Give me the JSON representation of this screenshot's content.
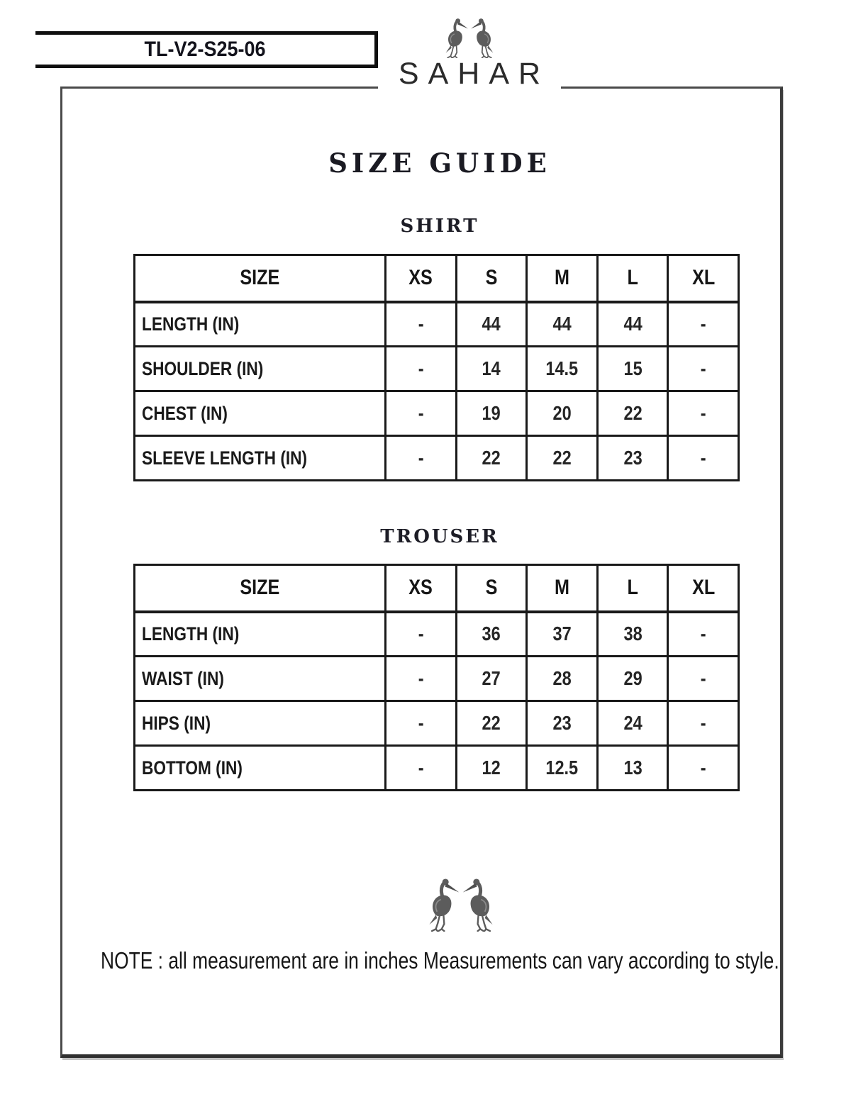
{
  "page": {
    "style_code": "TL-V2-S25-06",
    "brand": "SAHAR",
    "title": "SIZE GUIDE",
    "note": "NOTE : all measurement are in inches Measurements can vary according to style.",
    "icons": {
      "header_logo": "twin-stork-logo-icon",
      "footer_decoration": "twin-stork-decoration-icon"
    },
    "colors": {
      "text": "#1b1b1b",
      "table_border": "#191919",
      "frame_border": "#4a4a4a",
      "bird_gray": "#5c5c5c",
      "background": "#ffffff"
    }
  },
  "tables": [
    {
      "name": "SHIRT",
      "columns": [
        "SIZE",
        "XS",
        "S",
        "M",
        "L",
        "XL"
      ],
      "rows": [
        {
          "label": "LENGTH (IN)",
          "values": [
            "-",
            "44",
            "44",
            "44",
            "-"
          ]
        },
        {
          "label": "SHOULDER (IN)",
          "values": [
            "-",
            "14",
            "14.5",
            "15",
            "-"
          ]
        },
        {
          "label": "CHEST (IN)",
          "values": [
            "-",
            "19",
            "20",
            "22",
            "-"
          ]
        },
        {
          "label": "SLEEVE LENGTH (IN)",
          "values": [
            "-",
            "22",
            "22",
            "23",
            "-"
          ]
        }
      ]
    },
    {
      "name": "TROUSER",
      "columns": [
        "SIZE",
        "XS",
        "S",
        "M",
        "L",
        "XL"
      ],
      "rows": [
        {
          "label": "LENGTH (IN)",
          "values": [
            "-",
            "36",
            "37",
            "38",
            "-"
          ]
        },
        {
          "label": "WAIST (IN)",
          "values": [
            "-",
            "27",
            "28",
            "29",
            "-"
          ]
        },
        {
          "label": "HIPS (IN)",
          "values": [
            "-",
            "22",
            "23",
            "24",
            "-"
          ]
        },
        {
          "label": "BOTTOM (IN)",
          "values": [
            "-",
            "12",
            "12.5",
            "13",
            "-"
          ]
        }
      ]
    }
  ]
}
